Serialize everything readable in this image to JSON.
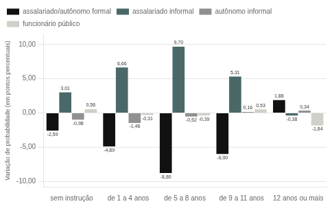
{
  "chart_data": {
    "type": "bar",
    "categories": [
      "sem instrução",
      "de 1 a 4 anos",
      "de 5 a 8 anos",
      "de 9 a 11 anos",
      "12 anos ou mais"
    ],
    "series": [
      {
        "name": "assalariado/autônomo formal",
        "color": "#111111",
        "values": [
          -2.59,
          -4.89,
          -8.8,
          -6.0,
          1.88
        ],
        "value_labels": [
          "-2,59",
          "-4,89",
          "-8,80",
          "-6,00",
          "1,88"
        ]
      },
      {
        "name": "assalariado informal",
        "color": "#4a6868",
        "values": [
          3.01,
          6.66,
          9.7,
          5.31,
          -0.38
        ],
        "value_labels": [
          "3,01",
          "6,66",
          "9,70",
          "5,31",
          "-0,38"
        ]
      },
      {
        "name": "autônomo informal",
        "color": "#909090",
        "values": [
          -0.98,
          -1.46,
          -0.52,
          0.16,
          0.34
        ],
        "value_labels": [
          "-0,98",
          "-1,46",
          "-0,52",
          "0,16",
          "0,34"
        ]
      },
      {
        "name": "funcionário público",
        "color": "#d0d0c8",
        "values": [
          0.56,
          -0.31,
          -0.39,
          0.53,
          -1.84
        ],
        "value_labels": [
          "0,56",
          "-0,31",
          "-0,39",
          "0,53",
          "-1,84"
        ]
      }
    ],
    "ylabel": "Variação de probabilidade (em pontos percentuais)",
    "ylim": [
      -10.8,
      11.5
    ],
    "yticks": [
      {
        "value": -10,
        "label": "-10,00"
      },
      {
        "value": -5,
        "label": "-5,00"
      },
      {
        "value": 0,
        "label": "0,00"
      },
      {
        "value": 5,
        "label": "5,00"
      },
      {
        "value": 10,
        "label": "10,00"
      }
    ],
    "grid": true,
    "legend": "upper left",
    "data_labels": true
  }
}
